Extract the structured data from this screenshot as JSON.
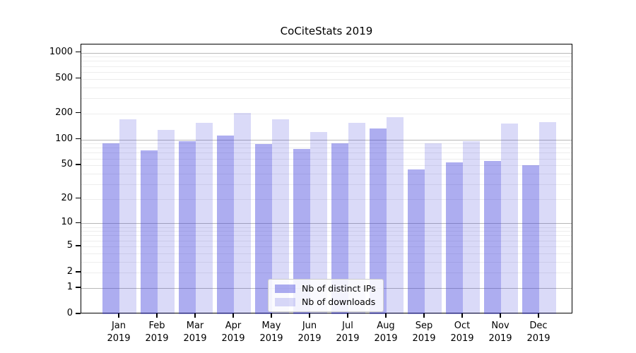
{
  "title": "CoCiteStats 2019",
  "colors": {
    "bar_ips": "rgba(60,60,220,0.42)",
    "bar_downloads": "rgba(60,60,220,0.19)",
    "grid_major": "#b8b8b8",
    "grid_minor": "#ededed",
    "axis": "#000000"
  },
  "legend": {
    "items": [
      {
        "label": "Nb of distinct IPs",
        "color_key": "bar_ips"
      },
      {
        "label": "Nb of downloads",
        "color_key": "bar_downloads"
      }
    ]
  },
  "chart_data": {
    "type": "bar",
    "title": "CoCiteStats 2019",
    "categories": [
      "Jan 2019",
      "Feb 2019",
      "Mar 2019",
      "Apr 2019",
      "May 2019",
      "Jun 2019",
      "Jul 2019",
      "Aug 2019",
      "Sep 2019",
      "Oct 2019",
      "Nov 2019",
      "Dec 2019"
    ],
    "series": [
      {
        "name": "Nb of distinct IPs",
        "values": [
          91,
          75,
          95,
          111,
          89,
          77,
          91,
          133,
          45,
          54,
          56,
          50
        ]
      },
      {
        "name": "Nb of downloads",
        "values": [
          172,
          130,
          155,
          202,
          171,
          121,
          157,
          180,
          91,
          96,
          154,
          159
        ]
      }
    ],
    "xlabel": "",
    "ylabel": "",
    "yscale": "log1p",
    "yticks": [
      0,
      1,
      2,
      5,
      10,
      20,
      50,
      100,
      200,
      500,
      1000
    ],
    "ylim": [
      0,
      1240
    ],
    "grid": "both",
    "legend_position": "lower center"
  }
}
